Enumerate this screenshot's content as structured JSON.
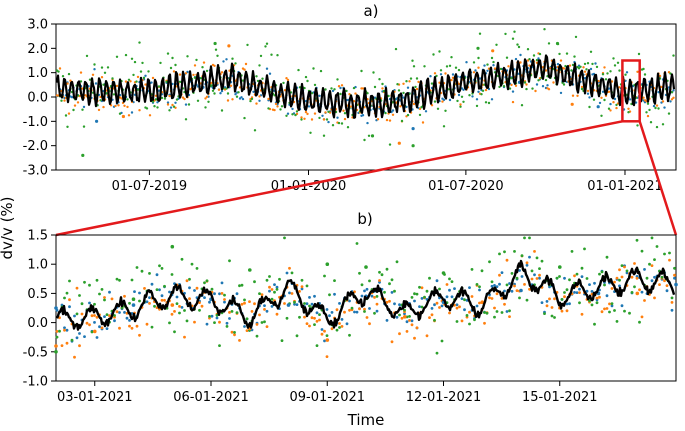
{
  "figure": {
    "ylabel": "dv/v (%)",
    "xlabel": "Time",
    "colors": {
      "blue": "#1f77b4",
      "orange": "#ff7f0e",
      "green": "#2ca02c",
      "black": "#000000",
      "zoom_box": "#e31a1c"
    }
  },
  "chart_data": [
    {
      "type": "scatter",
      "panel": "a)",
      "title": "a)",
      "x_range": [
        "2019-03-15",
        "2021-03-01"
      ],
      "ylim": [
        -3.0,
        3.0
      ],
      "y_ticks": [
        "3.0",
        "2.0",
        "1.0",
        "0.0",
        "-1.0",
        "-2.0",
        "-3.0"
      ],
      "x_ticks": [
        "01-07-2019",
        "01-01-2020",
        "01-07-2020",
        "01-01-2021"
      ],
      "series": [
        {
          "color": "#1f77b4",
          "x": [
            "2019-05-01",
            "2019-09-01",
            "2020-01-15",
            "2020-05-01",
            "2020-09-01",
            "2020-12-01"
          ],
          "values": [
            -1.0,
            0.4,
            -0.3,
            -1.3,
            0.6,
            -0.4
          ]
        },
        {
          "color": "#ff7f0e",
          "x": [
            "2019-06-01",
            "2019-10-01",
            "2020-02-01",
            "2020-04-15",
            "2020-08-01",
            "2020-11-01"
          ],
          "values": [
            -0.8,
            2.1,
            -0.5,
            -1.9,
            1.9,
            -0.3
          ]
        },
        {
          "color": "#2ca02c",
          "x": [
            "2019-04-15",
            "2019-09-15",
            "2020-03-15",
            "2020-05-01",
            "2020-07-15",
            "2020-10-15"
          ],
          "values": [
            -2.4,
            2.2,
            -1.6,
            -2.0,
            2.0,
            2.2
          ]
        },
        {
          "color": "#000000",
          "x": [
            "2019-03-15",
            "2019-07-01",
            "2019-10-01",
            "2020-01-01",
            "2020-04-01",
            "2020-07-01",
            "2020-10-01",
            "2021-01-01",
            "2021-03-01"
          ],
          "values": [
            0.3,
            0.2,
            0.8,
            -0.2,
            -0.3,
            0.6,
            1.2,
            0.2,
            0.4
          ]
        }
      ],
      "zoom_box": {
        "x": [
          "2020-12-29",
          "2021-01-18"
        ],
        "y": [
          -1.0,
          1.5
        ]
      }
    },
    {
      "type": "scatter",
      "panel": "b)",
      "title": "b)",
      "x_range": [
        "2021-01-02",
        "2021-01-18"
      ],
      "ylim": [
        -1.0,
        1.5
      ],
      "y_ticks": [
        "1.5",
        "1.0",
        "0.5",
        "0.0",
        "-0.5",
        "-1.0"
      ],
      "x_ticks": [
        "03-01-2021",
        "06-01-2021",
        "09-01-2021",
        "12-01-2021",
        "15-01-2021"
      ],
      "series": [
        {
          "color": "#000000",
          "x": [
            "2021-01-02",
            "2021-01-03",
            "2021-01-04",
            "2021-01-05",
            "2021-01-06",
            "2021-01-07",
            "2021-01-08",
            "2021-01-09",
            "2021-01-10",
            "2021-01-11",
            "2021-01-12",
            "2021-01-13",
            "2021-01-14",
            "2021-01-15",
            "2021-01-16",
            "2021-01-17",
            "2021-01-18"
          ],
          "values": [
            0.05,
            0.1,
            0.25,
            0.45,
            0.4,
            0.1,
            0.6,
            0.05,
            0.55,
            0.15,
            0.45,
            0.3,
            0.85,
            0.45,
            0.6,
            0.75,
            0.65
          ]
        },
        {
          "color": "#1f77b4",
          "x": [
            "2021-01-02",
            "2021-01-04",
            "2021-01-06",
            "2021-01-08",
            "2021-01-10",
            "2021-01-12",
            "2021-01-14",
            "2021-01-16",
            "2021-01-18"
          ],
          "values": [
            0.25,
            0.3,
            0.4,
            0.3,
            0.45,
            0.35,
            0.55,
            0.5,
            0.65
          ]
        },
        {
          "color": "#ff7f0e",
          "x": [
            "2021-01-02",
            "2021-01-03",
            "2021-01-05",
            "2021-01-07",
            "2021-01-09",
            "2021-01-11",
            "2021-01-13",
            "2021-01-15",
            "2021-01-17"
          ],
          "values": [
            -0.4,
            -0.15,
            0.3,
            -0.1,
            -0.3,
            0.1,
            0.35,
            0.3,
            0.5
          ]
        },
        {
          "color": "#2ca02c",
          "x": [
            "2021-01-02",
            "2021-01-04",
            "2021-01-05",
            "2021-01-07",
            "2021-01-09",
            "2021-01-10",
            "2021-01-12",
            "2021-01-14",
            "2021-01-15",
            "2021-01-17"
          ],
          "values": [
            -0.5,
            0.4,
            1.3,
            0.9,
            1.0,
            0.95,
            0.85,
            1.0,
            0.95,
            0.9
          ]
        }
      ]
    }
  ]
}
